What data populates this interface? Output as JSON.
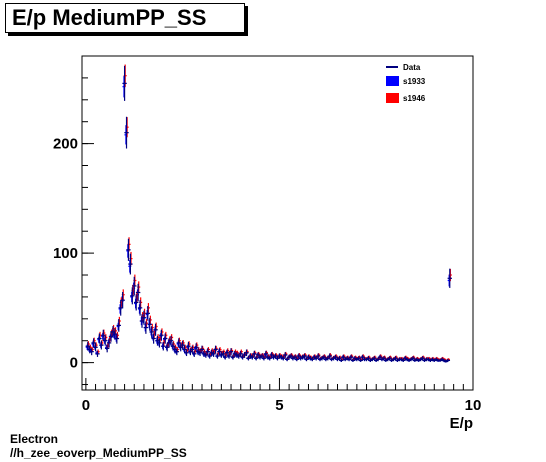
{
  "title": "E/p MediumPP_SS",
  "footer": {
    "line1": "Electron",
    "line2": "//h_zee_eoverp_MediumPP_SS"
  },
  "colors": {
    "data": "#000080",
    "s1933": "#0000ff",
    "s1946": "#ff0000"
  },
  "chart_data": {
    "type": "scatter",
    "title": "E/p MediumPP_SS",
    "xlabel": "E/p",
    "ylabel": "",
    "xlim": [
      -0.1,
      10.0
    ],
    "ylim": [
      -25,
      280
    ],
    "xticks": [
      0,
      5,
      10
    ],
    "yticks": [
      0,
      100,
      200
    ],
    "legend_position": "top-right",
    "legend": [
      "Data",
      "s1933",
      "s1946"
    ],
    "x": [
      0.05,
      0.1,
      0.15,
      0.2,
      0.25,
      0.3,
      0.35,
      0.4,
      0.45,
      0.5,
      0.55,
      0.6,
      0.65,
      0.7,
      0.75,
      0.8,
      0.85,
      0.9,
      0.95,
      1.0,
      1.05,
      1.1,
      1.15,
      1.2,
      1.25,
      1.3,
      1.35,
      1.4,
      1.45,
      1.5,
      1.55,
      1.6,
      1.65,
      1.7,
      1.75,
      1.8,
      1.85,
      1.9,
      1.95,
      2.0,
      2.05,
      2.1,
      2.15,
      2.2,
      2.25,
      2.3,
      2.35,
      2.4,
      2.45,
      2.5,
      2.55,
      2.6,
      2.65,
      2.7,
      2.75,
      2.8,
      2.85,
      2.9,
      2.95,
      3.0,
      3.05,
      3.1,
      3.15,
      3.2,
      3.25,
      3.3,
      3.35,
      3.4,
      3.45,
      3.5,
      3.55,
      3.6,
      3.65,
      3.7,
      3.75,
      3.8,
      3.85,
      3.9,
      3.95,
      4.0,
      4.05,
      4.1,
      4.15,
      4.2,
      4.25,
      4.3,
      4.35,
      4.4,
      4.45,
      4.5,
      4.55,
      4.6,
      4.65,
      4.7,
      4.75,
      4.8,
      4.85,
      4.9,
      4.95,
      5.0,
      5.05,
      5.1,
      5.15,
      5.2,
      5.25,
      5.3,
      5.35,
      5.4,
      5.45,
      5.5,
      5.55,
      5.6,
      5.65,
      5.7,
      5.75,
      5.8,
      5.85,
      5.9,
      5.95,
      6.0,
      6.05,
      6.1,
      6.15,
      6.2,
      6.25,
      6.3,
      6.35,
      6.4,
      6.45,
      6.5,
      6.55,
      6.6,
      6.65,
      6.7,
      6.75,
      6.8,
      6.85,
      6.9,
      6.95,
      7.0,
      7.05,
      7.1,
      7.15,
      7.2,
      7.25,
      7.3,
      7.35,
      7.4,
      7.45,
      7.5,
      7.55,
      7.6,
      7.65,
      7.7,
      7.75,
      7.8,
      7.85,
      7.9,
      7.95,
      8.0,
      8.05,
      8.1,
      8.15,
      8.2,
      8.25,
      8.3,
      8.35,
      8.4,
      8.45,
      8.5,
      8.55,
      8.6,
      8.65,
      8.7,
      8.75,
      8.8,
      8.85,
      8.9,
      8.95,
      9.0,
      9.05,
      9.1,
      9.15,
      9.2,
      9.25,
      9.3,
      9.35,
      9.4,
      9.45,
      9.5,
      9.55,
      9.6,
      9.65,
      9.7,
      9.75,
      9.95
    ],
    "series": [
      {
        "name": "Data",
        "values": [
          15,
          12,
          10,
          18,
          14,
          8,
          22,
          16,
          25,
          20,
          13,
          18,
          24,
          28,
          26,
          22,
          34,
          50,
          57,
          255,
          210,
          103,
          90,
          61,
          70,
          55,
          64,
          50,
          38,
          41,
          32,
          45,
          35,
          28,
          22,
          30,
          20,
          18,
          25,
          15,
          22,
          14,
          18,
          20,
          15,
          12,
          10,
          18,
          14,
          16,
          12,
          9,
          15,
          10,
          12,
          8,
          14,
          10,
          9,
          12,
          8,
          7,
          10,
          6,
          9,
          8,
          12,
          6,
          10,
          7,
          8,
          5,
          9,
          6,
          10,
          5,
          8,
          7,
          6,
          8,
          5,
          7,
          9,
          4,
          6,
          5,
          8,
          4,
          7,
          5,
          6,
          4,
          8,
          5,
          4,
          7,
          5,
          6,
          4,
          6,
          5,
          4,
          7,
          3,
          5,
          6,
          4,
          5,
          3,
          6,
          4,
          5,
          6,
          3,
          5,
          4,
          3,
          5,
          4,
          6,
          3,
          4,
          5,
          3,
          4,
          6,
          3,
          4,
          5,
          3,
          4,
          2,
          5,
          3,
          4,
          3,
          5,
          2,
          4,
          3,
          4,
          2,
          5,
          3,
          3,
          4,
          2,
          3,
          4,
          2,
          3,
          5,
          3,
          4,
          2,
          3,
          4,
          2,
          3,
          4,
          2,
          3,
          3,
          2,
          4,
          3,
          2,
          3,
          4,
          2,
          3,
          2,
          3,
          4,
          2,
          3,
          3,
          2,
          3,
          2,
          3,
          2,
          2,
          3,
          2,
          1,
          2,
          77
        ],
        "errors": [
          4,
          3.5,
          3.2,
          4.2,
          3.7,
          2.8,
          4.7,
          4,
          5,
          4.5,
          3.6,
          4.2,
          4.9,
          5.3,
          5.1,
          4.7,
          5.8,
          7.1,
          7.5,
          16,
          14.5,
          10.1,
          9.5,
          7.8,
          8.4,
          7.4,
          8,
          7.1,
          6.2,
          6.4,
          5.7,
          6.7,
          5.9,
          5.3,
          4.7,
          5.5,
          4.5,
          4.2,
          5,
          3.9,
          4.7,
          3.7,
          4.2,
          4.5,
          3.9,
          3.5,
          3.2,
          4.2,
          3.7,
          4,
          3.5,
          3,
          3.9,
          3.2,
          3.5,
          2.8,
          3.7,
          3.2,
          3,
          3.5,
          2.8,
          2.6,
          3.2,
          2.4,
          3,
          2.8,
          3.5,
          2.4,
          3.2,
          2.6,
          2.8,
          2.2,
          3,
          2.4,
          3.2,
          2.2,
          2.8,
          2.6,
          2.4,
          2.8,
          2.2,
          2.6,
          3,
          2,
          2.4,
          2.2,
          2.8,
          2,
          2.6,
          2.2,
          2.4,
          2,
          2.8,
          2.2,
          2,
          2.6,
          2.2,
          2.4,
          2,
          2.4,
          2.2,
          2,
          2.6,
          1.7,
          2.2,
          2.4,
          2,
          2.2,
          1.7,
          2.4,
          2,
          2.2,
          2.4,
          1.7,
          2.2,
          2,
          1.7,
          2.2,
          2,
          2.4,
          1.7,
          2,
          2.2,
          1.7,
          2,
          2.4,
          1.7,
          2,
          2.2,
          1.7,
          2,
          1.4,
          2.2,
          1.7,
          2,
          1.7,
          2.2,
          1.4,
          2,
          1.7,
          2,
          1.4,
          2.2,
          1.7,
          1.7,
          2,
          1.4,
          1.7,
          2,
          1.4,
          1.7,
          2.2,
          1.7,
          2,
          1.4,
          1.7,
          2,
          1.4,
          1.7,
          2,
          1.4,
          1.7,
          1.7,
          1.4,
          2,
          1.7,
          1.4,
          1.7,
          2,
          1.4,
          1.7,
          1.4,
          1.7,
          2,
          1.4,
          1.7,
          1.7,
          1.4,
          1.7,
          1.4,
          1.7,
          1.4,
          1.4,
          1.7,
          1.4,
          1,
          1.4,
          8.8
        ]
      },
      {
        "name": "s1933",
        "values": [
          14,
          12,
          11,
          17,
          14,
          9,
          21,
          16,
          24,
          20,
          14,
          18,
          23,
          27,
          25,
          22,
          33,
          49,
          56,
          252,
          208,
          102,
          88,
          60,
          68,
          54,
          62,
          49,
          38,
          40,
          32,
          44,
          35,
          28,
          23,
          29,
          20,
          18,
          24,
          15,
          21,
          14,
          18,
          19,
          15,
          12,
          10,
          17,
          14,
          16,
          12,
          9,
          14,
          10,
          12,
          8,
          13,
          10,
          9,
          11,
          8,
          7,
          10,
          6,
          9,
          8,
          11,
          6,
          10,
          7,
          8,
          5,
          9,
          6,
          9,
          5,
          8,
          7,
          6,
          8,
          5,
          7,
          8,
          4,
          6,
          5,
          7,
          4,
          7,
          5,
          6,
          4,
          7,
          5,
          4,
          7,
          5,
          6,
          4,
          6,
          5,
          4,
          6,
          3,
          5,
          6,
          4,
          5,
          3,
          6,
          4,
          5,
          5,
          3,
          5,
          4,
          3,
          5,
          4,
          5,
          3,
          4,
          5,
          3,
          4,
          5,
          3,
          4,
          5,
          3,
          4,
          2,
          5,
          3,
          4,
          3,
          5,
          2,
          4,
          3,
          4,
          2,
          5,
          3,
          3,
          4,
          2,
          3,
          4,
          2,
          3,
          5,
          3,
          4,
          2,
          3,
          4,
          2,
          3,
          4,
          2,
          3,
          3,
          2,
          4,
          3,
          2,
          3,
          4,
          2,
          3,
          2,
          3,
          4,
          2,
          3,
          3,
          2,
          3,
          2,
          3,
          2,
          2,
          3,
          2,
          1,
          2,
          75
        ],
        "errors": [
          2.4,
          2.2,
          2,
          2.6,
          2.3,
          1.8,
          2.9,
          2.5,
          3,
          2.8,
          2.3,
          2.6,
          3,
          3.2,
          3.1,
          2.9,
          3.5,
          4.3,
          4.6,
          9.8,
          8.8,
          6.2,
          5.8,
          4.8,
          5.1,
          4.5,
          4.9,
          4.3,
          3.8,
          3.9,
          3.5,
          4.1,
          3.6,
          3.2,
          2.9,
          3.3,
          2.7,
          2.6,
          3,
          2.4,
          2.8,
          2.3,
          2.6,
          2.7,
          2.4,
          2.2,
          2,
          2.5,
          2.3,
          2.4,
          2.1,
          1.8,
          2.3,
          1.9,
          2.1,
          1.7,
          2.2,
          1.9,
          1.8,
          2,
          1.7,
          1.6,
          1.9,
          1.5,
          1.8,
          1.7,
          2,
          1.5,
          1.9,
          1.6,
          1.7,
          1.4,
          1.8,
          1.5,
          1.8,
          1.4,
          1.7,
          1.6,
          1.5,
          1.7,
          1.4,
          1.6,
          1.7,
          1.2,
          1.5,
          1.4,
          1.6,
          1.2,
          1.6,
          1.4,
          1.5,
          1.2,
          1.6,
          1.4,
          1.2,
          1.6,
          1.4,
          1.5,
          1.2,
          1.5,
          1.4,
          1.2,
          1.5,
          1,
          1.4,
          1.5,
          1.2,
          1.4,
          1,
          1.5,
          1.2,
          1.4,
          1.4,
          1,
          1.4,
          1.2,
          1,
          1.4,
          1.2,
          1.4,
          1,
          1.2,
          1.4,
          1,
          1.2,
          1.4,
          1,
          1.2,
          1.4,
          1,
          1.2,
          0.9,
          1.4,
          1,
          1.2,
          1,
          1.4,
          0.9,
          1.2,
          1,
          1.2,
          0.9,
          1.4,
          1,
          1,
          1.2,
          0.9,
          1,
          1.2,
          0.9,
          1,
          1.4,
          1,
          1.2,
          0.9,
          1,
          1.2,
          0.9,
          1,
          1.2,
          0.9,
          1,
          1,
          0.9,
          1.2,
          1,
          0.9,
          1,
          1.2,
          0.9,
          1,
          0.9,
          1,
          1.2,
          0.9,
          1,
          1,
          0.9,
          1,
          0.9,
          1,
          0.9,
          0.9,
          1,
          0.9,
          0.6,
          0.9,
          5.4
        ]
      },
      {
        "name": "s1946",
        "values": [
          17,
          14,
          12,
          20,
          16,
          10,
          25,
          18,
          27,
          23,
          15,
          21,
          27,
          31,
          29,
          25,
          38,
          55,
          62,
          262,
          215,
          108,
          95,
          66,
          75,
          60,
          69,
          55,
          42,
          45,
          36,
          50,
          39,
          32,
          26,
          33,
          23,
          21,
          28,
          18,
          25,
          16,
          21,
          23,
          17,
          14,
          12,
          20,
          16,
          18,
          14,
          11,
          17,
          12,
          14,
          10,
          16,
          12,
          11,
          13,
          10,
          8,
          12,
          8,
          11,
          10,
          13,
          8,
          12,
          9,
          10,
          7,
          11,
          8,
          11,
          6,
          10,
          9,
          7,
          10,
          6,
          8,
          10,
          5,
          7,
          6,
          9,
          5,
          8,
          6,
          7,
          5,
          9,
          6,
          5,
          8,
          6,
          7,
          5,
          7,
          6,
          5,
          8,
          4,
          6,
          7,
          5,
          6,
          4,
          7,
          5,
          6,
          7,
          4,
          6,
          5,
          4,
          6,
          5,
          7,
          4,
          5,
          6,
          4,
          5,
          7,
          4,
          5,
          6,
          4,
          5,
          3,
          6,
          4,
          5,
          4,
          6,
          3,
          5,
          4,
          5,
          3,
          6,
          4,
          4,
          5,
          3,
          4,
          5,
          3,
          4,
          6,
          4,
          5,
          3,
          4,
          5,
          3,
          4,
          5,
          3,
          4,
          4,
          3,
          5,
          4,
          3,
          4,
          5,
          3,
          4,
          3,
          4,
          5,
          3,
          4,
          4,
          3,
          4,
          3,
          4,
          3,
          3,
          4,
          3,
          2,
          3,
          80
        ],
        "errors": [
          2.6,
          2.4,
          2.2,
          2.8,
          2.5,
          2,
          3.1,
          2.7,
          3.2,
          3,
          2.4,
          2.8,
          3.2,
          3.4,
          3.3,
          3.1,
          3.8,
          4.6,
          4.9,
          10.2,
          9.2,
          6.5,
          6.1,
          5.1,
          5.4,
          4.8,
          5.2,
          4.6,
          4.1,
          4.2,
          3.8,
          4.4,
          3.9,
          3.5,
          3.2,
          3.6,
          3,
          2.9,
          3.3,
          2.7,
          3.1,
          2.6,
          2.9,
          3,
          2.6,
          2.4,
          2.2,
          2.8,
          2.5,
          2.6,
          2.4,
          2.1,
          2.6,
          2.2,
          2.4,
          2,
          2.5,
          2.2,
          2.1,
          2.3,
          2,
          1.8,
          2.2,
          1.8,
          2.1,
          2,
          2.3,
          1.8,
          2.2,
          1.9,
          2,
          1.7,
          2.1,
          1.8,
          2.1,
          1.6,
          2,
          1.9,
          1.7,
          2,
          1.6,
          1.8,
          2,
          1.4,
          1.7,
          1.6,
          1.9,
          1.4,
          1.8,
          1.6,
          1.7,
          1.4,
          1.9,
          1.6,
          1.4,
          1.8,
          1.6,
          1.7,
          1.4,
          1.7,
          1.6,
          1.4,
          1.8,
          1.2,
          1.6,
          1.7,
          1.4,
          1.6,
          1.2,
          1.7,
          1.4,
          1.6,
          1.7,
          1.2,
          1.6,
          1.4,
          1.2,
          1.6,
          1.4,
          1.7,
          1.2,
          1.4,
          1.6,
          1.2,
          1.4,
          1.7,
          1.2,
          1.4,
          1.6,
          1.2,
          1.4,
          1,
          1.6,
          1.2,
          1.4,
          1.2,
          1.6,
          1,
          1.4,
          1.2,
          1.4,
          1,
          1.6,
          1.2,
          1.2,
          1.4,
          1,
          1.2,
          1.4,
          1,
          1.2,
          1.6,
          1.2,
          1.4,
          1,
          1.2,
          1.4,
          1,
          1.2,
          1.4,
          1,
          1.2,
          1.2,
          1,
          1.4,
          1.2,
          1,
          1.2,
          1.4,
          1,
          1.2,
          1,
          1.2,
          1.4,
          1,
          1.2,
          1.2,
          1,
          1.2,
          1,
          1.2,
          1,
          1,
          1.2,
          1,
          0.8,
          1,
          5.6
        ]
      }
    ]
  }
}
